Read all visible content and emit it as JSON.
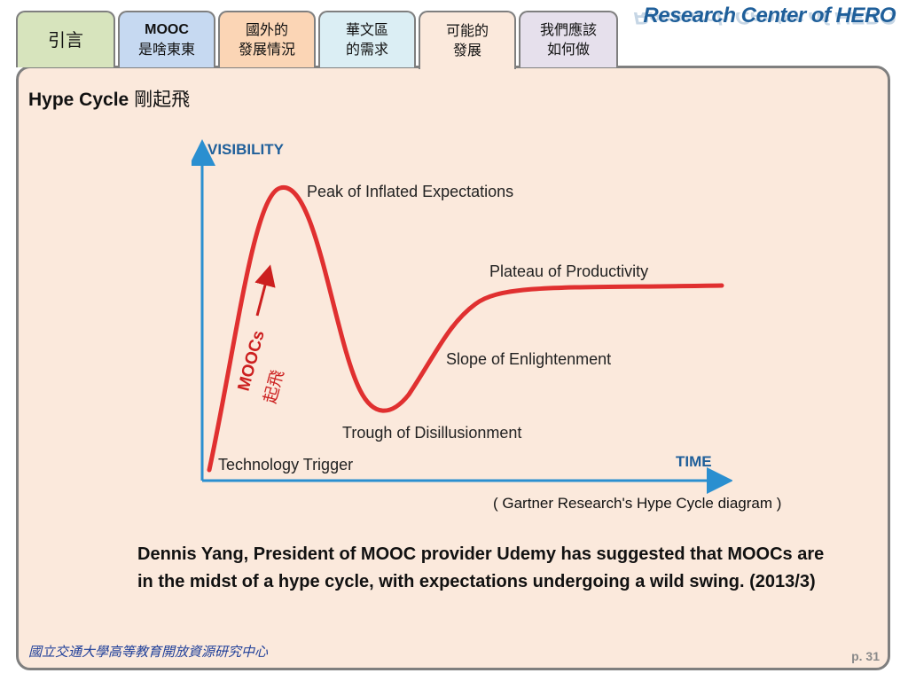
{
  "header": {
    "title": "Research Center of HERO"
  },
  "tabs": [
    {
      "line1": "引言",
      "line2": ""
    },
    {
      "line1": "MOOC",
      "line2": "是啥東東"
    },
    {
      "line1": "國外的",
      "line2": "發展情況"
    },
    {
      "line1": "華文區",
      "line2": "的需求"
    },
    {
      "line1": "可能的",
      "line2": "發展"
    },
    {
      "line1": "我們應該",
      "line2": "如何做"
    }
  ],
  "tab_colors": [
    "#d7e4bd",
    "#c6d9f1",
    "#fbd5b5",
    "#dbeef4",
    "#fbe9dc",
    "#e6e0ec"
  ],
  "slide": {
    "title_en": "Hype Cycle",
    "title_cjk": "剛起飛"
  },
  "diagram": {
    "y_axis_label": "VISIBILITY",
    "x_axis_label": "TIME",
    "phases": {
      "trigger": "Technology Trigger",
      "peak": "Peak of Inflated Expectations",
      "trough": "Trough of Disillusionment",
      "slope": "Slope of Enlightenment",
      "plateau": "Plateau of Productivity"
    },
    "marker_label": "MOOCs",
    "marker_label_cjk": "起飛",
    "caption": "( Gartner Research's Hype Cycle diagram )",
    "curve_color": "#e03030",
    "axis_color": "#2a8fd0",
    "marker_color": "#cc1f1f"
  },
  "body_text": "Dennis Yang, President of MOOC provider Udemy has suggested that MOOCs are in the midst of a hype cycle, with expectations undergoing a wild swing. (2013/3)",
  "footer": {
    "org": "國立交通大學高等教育開放資源研究中心",
    "page": "p. 31"
  }
}
